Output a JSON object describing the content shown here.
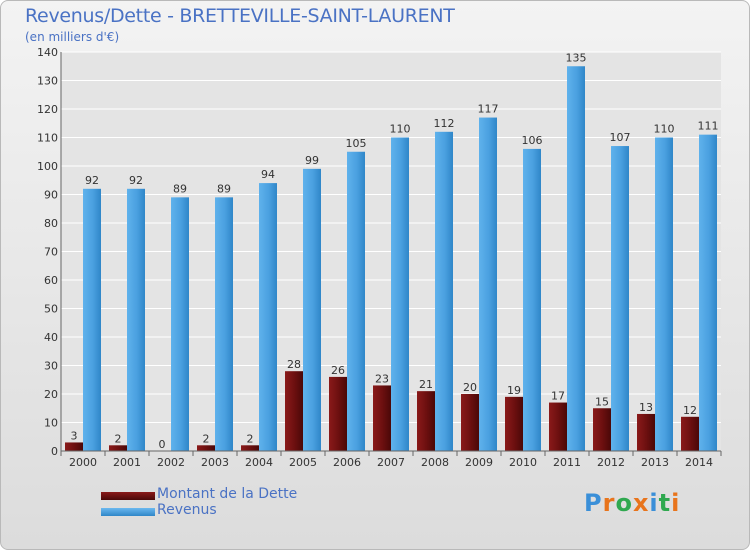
{
  "title": "Revenus/Dette - BRETTEVILLE-SAINT-LAURENT",
  "subtitle": "(en milliers d'€)",
  "logo": "Proxiti",
  "colors": {
    "dette": "#6b0f0f",
    "revenus": "#4aa0e0",
    "text": "#4a72c4",
    "grid": "#ffffff"
  },
  "chart_data": {
    "type": "bar",
    "categories": [
      "2000",
      "2001",
      "2002",
      "2003",
      "2004",
      "2005",
      "2006",
      "2007",
      "2008",
      "2009",
      "2010",
      "2011",
      "2012",
      "2013",
      "2014"
    ],
    "series": [
      {
        "name": "Montant de la Dette",
        "values": [
          3,
          2,
          0,
          2,
          2,
          28,
          26,
          23,
          21,
          20,
          19,
          17,
          15,
          13,
          12
        ]
      },
      {
        "name": "Revenus",
        "values": [
          92,
          92,
          89,
          89,
          94,
          99,
          105,
          110,
          112,
          117,
          106,
          135,
          107,
          110,
          111
        ]
      }
    ],
    "yticks": [
      0,
      10,
      20,
      30,
      40,
      50,
      60,
      70,
      80,
      90,
      100,
      110,
      120,
      130,
      140
    ],
    "ylim": [
      0,
      140
    ],
    "grid": true,
    "legend": "bottom-left"
  }
}
